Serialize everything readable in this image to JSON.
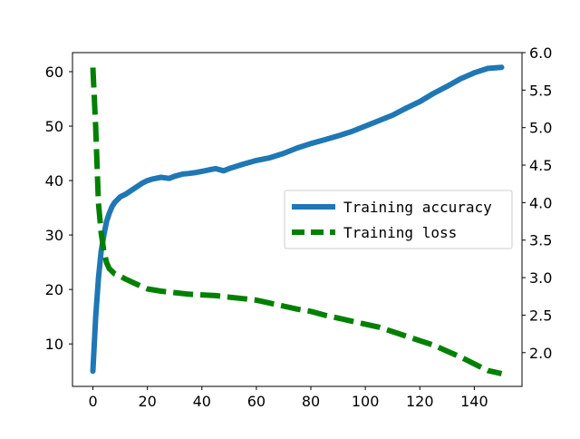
{
  "chart_data": {
    "type": "line",
    "x_ticks": [
      0,
      20,
      40,
      60,
      80,
      100,
      120,
      140
    ],
    "xlim": [
      -7.5,
      157.5
    ],
    "y_left": {
      "ylim": [
        2.2,
        63.5
      ],
      "ticks": [
        10,
        20,
        30,
        40,
        50,
        60
      ]
    },
    "y_right": {
      "ylim": [
        1.55,
        6.0
      ],
      "ticks": [
        "2.0",
        "2.5",
        "3.0",
        "3.5",
        "4.0",
        "4.5",
        "5.0",
        "5.5",
        "6.0"
      ]
    },
    "legend_position": "center-right",
    "series": [
      {
        "name": "Training accuracy",
        "axis": "left",
        "color": "#1f77b4",
        "style": "solid",
        "x": [
          0,
          1,
          2,
          3,
          4,
          5,
          6,
          7,
          8,
          10,
          12,
          15,
          18,
          20,
          22,
          25,
          28,
          30,
          33,
          35,
          38,
          40,
          43,
          45,
          48,
          50,
          55,
          60,
          65,
          70,
          75,
          80,
          85,
          90,
          95,
          100,
          105,
          110,
          115,
          120,
          125,
          130,
          135,
          140,
          145,
          150
        ],
        "y": [
          5,
          15,
          22,
          27,
          30,
          32.5,
          34,
          35.2,
          36,
          37,
          37.5,
          38.5,
          39.5,
          40,
          40.3,
          40.6,
          40.4,
          40.8,
          41.2,
          41.3,
          41.5,
          41.7,
          42,
          42.2,
          41.8,
          42.2,
          43,
          43.7,
          44.2,
          45,
          46,
          46.8,
          47.5,
          48.2,
          49,
          50,
          51,
          52,
          53.3,
          54.5,
          56,
          57.3,
          58.7,
          59.8,
          60.6,
          60.8
        ]
      },
      {
        "name": "Training loss",
        "axis": "right",
        "color": "#008000",
        "style": "dashed",
        "x": [
          0,
          1,
          2,
          3,
          4,
          5,
          6,
          8,
          10,
          12,
          15,
          18,
          20,
          25,
          30,
          35,
          40,
          45,
          50,
          55,
          60,
          65,
          70,
          75,
          80,
          85,
          90,
          95,
          100,
          105,
          110,
          115,
          120,
          125,
          130,
          135,
          140,
          145,
          150
        ],
        "y": [
          5.8,
          5.0,
          4.0,
          3.6,
          3.35,
          3.2,
          3.12,
          3.05,
          3.02,
          2.98,
          2.93,
          2.88,
          2.85,
          2.82,
          2.8,
          2.78,
          2.77,
          2.76,
          2.74,
          2.72,
          2.7,
          2.66,
          2.62,
          2.58,
          2.55,
          2.5,
          2.46,
          2.42,
          2.38,
          2.34,
          2.28,
          2.22,
          2.16,
          2.1,
          2.02,
          1.94,
          1.85,
          1.76,
          1.72
        ]
      }
    ]
  }
}
